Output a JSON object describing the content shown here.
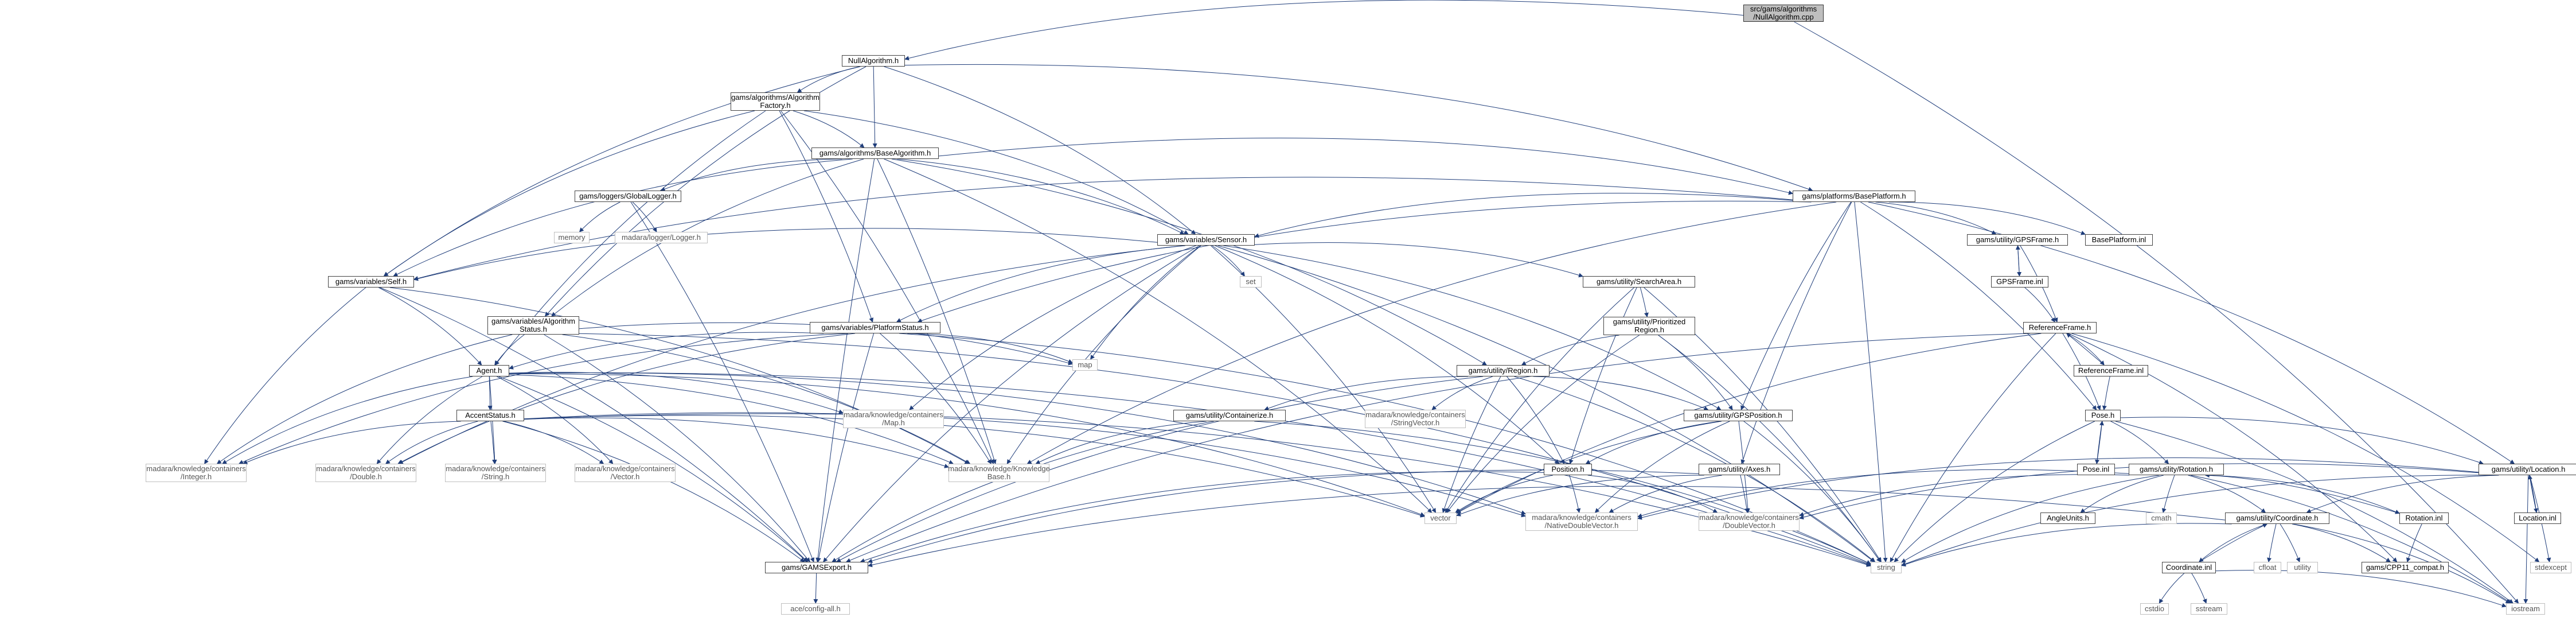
{
  "graph": {
    "nodes": [
      {
        "id": "root",
        "label": "src/gams/algorithms\n/NullAlgorithm.cpp",
        "kind": "root"
      },
      {
        "id": "nullalg",
        "label": "NullAlgorithm.h",
        "kind": "doc"
      },
      {
        "id": "algfactory",
        "label": "gams/algorithms/Algorithm\nFactory.h",
        "kind": "doc"
      },
      {
        "id": "basealg",
        "label": "gams/algorithms/BaseAlgorithm.h",
        "kind": "doc"
      },
      {
        "id": "globallogger",
        "label": "gams/loggers/GlobalLogger.h",
        "kind": "doc"
      },
      {
        "id": "memory",
        "label": "memory",
        "kind": "ext"
      },
      {
        "id": "madaralogger",
        "label": "madara/logger/Logger.h",
        "kind": "ext"
      },
      {
        "id": "baseplatform",
        "label": "gams/platforms/BasePlatform.h",
        "kind": "doc"
      },
      {
        "id": "sensor",
        "label": "gams/variables/Sensor.h",
        "kind": "doc"
      },
      {
        "id": "self",
        "label": "gams/variables/Self.h",
        "kind": "doc"
      },
      {
        "id": "set",
        "label": "set",
        "kind": "ext"
      },
      {
        "id": "algstatus",
        "label": "gams/variables/Algorithm\nStatus.h",
        "kind": "doc"
      },
      {
        "id": "platstatus",
        "label": "gams/variables/PlatformStatus.h",
        "kind": "doc"
      },
      {
        "id": "map",
        "label": "map",
        "kind": "ext"
      },
      {
        "id": "agent",
        "label": "Agent.h",
        "kind": "doc"
      },
      {
        "id": "accent",
        "label": "AccentStatus.h",
        "kind": "doc"
      },
      {
        "id": "mkint",
        "label": "madara/knowledge/containers\n/Integer.h",
        "kind": "ext"
      },
      {
        "id": "mkdouble",
        "label": "madara/knowledge/containers\n/Double.h",
        "kind": "ext"
      },
      {
        "id": "mkstring",
        "label": "madara/knowledge/containers\n/String.h",
        "kind": "ext"
      },
      {
        "id": "mkvector",
        "label": "madara/knowledge/containers\n/Vector.h",
        "kind": "ext"
      },
      {
        "id": "mkmap",
        "label": "madara/knowledge/containers\n/Map.h",
        "kind": "ext"
      },
      {
        "id": "mkbase",
        "label": "madara/knowledge/Knowledge\nBase.h",
        "kind": "ext"
      },
      {
        "id": "gamsexport",
        "label": "gams/GAMSExport.h",
        "kind": "doc"
      },
      {
        "id": "aceconfig",
        "label": "ace/config-all.h",
        "kind": "ext"
      },
      {
        "id": "searcharea",
        "label": "gams/utility/SearchArea.h",
        "kind": "doc"
      },
      {
        "id": "prioregion",
        "label": "gams/utility/Prioritized\nRegion.h",
        "kind": "doc"
      },
      {
        "id": "region",
        "label": "gams/utility/Region.h",
        "kind": "doc"
      },
      {
        "id": "mkstrvec",
        "label": "madara/knowledge/containers\n/StringVector.h",
        "kind": "ext"
      },
      {
        "id": "containerize",
        "label": "gams/utility/Containerize.h",
        "kind": "doc"
      },
      {
        "id": "gpsposition",
        "label": "gams/utility/GPSPosition.h",
        "kind": "doc"
      },
      {
        "id": "position",
        "label": "Position.h",
        "kind": "doc"
      },
      {
        "id": "axes",
        "label": "gams/utility/Axes.h",
        "kind": "doc"
      },
      {
        "id": "vector",
        "label": "vector",
        "kind": "ext"
      },
      {
        "id": "nativedv",
        "label": "madara/knowledge/containers\n/NativeDoubleVector.h",
        "kind": "ext"
      },
      {
        "id": "doublevec",
        "label": "madara/knowledge/containers\n/DoubleVector.h",
        "kind": "ext"
      },
      {
        "id": "string",
        "label": "string",
        "kind": "ext"
      },
      {
        "id": "gpsframeh",
        "label": "gams/utility/GPSFrame.h",
        "kind": "doc"
      },
      {
        "id": "gpsframeinl",
        "label": "GPSFrame.inl",
        "kind": "doc"
      },
      {
        "id": "baseplatinl",
        "label": "BasePlatform.inl",
        "kind": "doc"
      },
      {
        "id": "refframe",
        "label": "ReferenceFrame.h",
        "kind": "doc"
      },
      {
        "id": "refframeinl",
        "label": "ReferenceFrame.inl",
        "kind": "doc"
      },
      {
        "id": "pose",
        "label": "Pose.h",
        "kind": "doc"
      },
      {
        "id": "poseinl",
        "label": "Pose.inl",
        "kind": "doc"
      },
      {
        "id": "rotation",
        "label": "gams/utility/Rotation.h",
        "kind": "doc"
      },
      {
        "id": "angleunits",
        "label": "AngleUnits.h",
        "kind": "doc"
      },
      {
        "id": "cmath",
        "label": "cmath",
        "kind": "ext"
      },
      {
        "id": "coordinate",
        "label": "gams/utility/Coordinate.h",
        "kind": "doc"
      },
      {
        "id": "cfloat",
        "label": "cfloat",
        "kind": "ext"
      },
      {
        "id": "utility",
        "label": "utility",
        "kind": "ext"
      },
      {
        "id": "coordinl",
        "label": "Coordinate.inl",
        "kind": "doc"
      },
      {
        "id": "cstdio",
        "label": "cstdio",
        "kind": "ext"
      },
      {
        "id": "sstream",
        "label": "sstream",
        "kind": "ext"
      },
      {
        "id": "rotationinl",
        "label": "Rotation.inl",
        "kind": "doc"
      },
      {
        "id": "cpp11",
        "label": "gams/CPP11_compat.h",
        "kind": "doc"
      },
      {
        "id": "location",
        "label": "gams/utility/Location.h",
        "kind": "doc"
      },
      {
        "id": "locationinl",
        "label": "Location.inl",
        "kind": "doc"
      },
      {
        "id": "stdexcept",
        "label": "stdexcept",
        "kind": "ext"
      },
      {
        "id": "iostream",
        "label": "iostream",
        "kind": "ext"
      }
    ],
    "edges": [
      [
        "root",
        "nullalg"
      ],
      [
        "root",
        "iostream"
      ],
      [
        "nullalg",
        "algfactory"
      ],
      [
        "nullalg",
        "basealg"
      ],
      [
        "nullalg",
        "self"
      ],
      [
        "nullalg",
        "sensor"
      ],
      [
        "nullalg",
        "algstatus"
      ],
      [
        "nullalg",
        "baseplatform"
      ],
      [
        "algfactory",
        "basealg"
      ],
      [
        "algfactory",
        "self"
      ],
      [
        "algfactory",
        "sensor"
      ],
      [
        "algfactory",
        "platstatus"
      ],
      [
        "algfactory",
        "agent"
      ],
      [
        "algfactory",
        "mkbase"
      ],
      [
        "basealg",
        "globallogger"
      ],
      [
        "basealg",
        "baseplatform"
      ],
      [
        "basealg",
        "sensor"
      ],
      [
        "basealg",
        "self"
      ],
      [
        "basealg",
        "algstatus"
      ],
      [
        "basealg",
        "region"
      ],
      [
        "basealg",
        "vector"
      ],
      [
        "basealg",
        "mkbase"
      ],
      [
        "basealg",
        "gamsexport"
      ],
      [
        "globallogger",
        "memory"
      ],
      [
        "globallogger",
        "madaralogger"
      ],
      [
        "globallogger",
        "gamsexport"
      ],
      [
        "baseplatform",
        "sensor"
      ],
      [
        "baseplatform",
        "platstatus"
      ],
      [
        "baseplatform",
        "gpsframeh"
      ],
      [
        "baseplatform",
        "baseplatinl"
      ],
      [
        "baseplatform",
        "pose"
      ],
      [
        "baseplatform",
        "location"
      ],
      [
        "baseplatform",
        "gpsposition"
      ],
      [
        "baseplatform",
        "axes"
      ],
      [
        "baseplatform",
        "mkbase"
      ],
      [
        "baseplatform",
        "string"
      ],
      [
        "baseplatform",
        "self"
      ],
      [
        "sensor",
        "self"
      ],
      [
        "sensor",
        "map"
      ],
      [
        "sensor",
        "set"
      ],
      [
        "sensor",
        "searcharea"
      ],
      [
        "sensor",
        "platstatus"
      ],
      [
        "sensor",
        "gpsposition"
      ],
      [
        "sensor",
        "position"
      ],
      [
        "sensor",
        "mkmap"
      ],
      [
        "sensor",
        "mkbase"
      ],
      [
        "sensor",
        "mkdouble"
      ],
      [
        "sensor",
        "string"
      ],
      [
        "sensor",
        "vector"
      ],
      [
        "sensor",
        "gamsexport"
      ],
      [
        "self",
        "agent"
      ],
      [
        "self",
        "mkint"
      ],
      [
        "self",
        "mkbase"
      ],
      [
        "self",
        "gamsexport"
      ],
      [
        "algstatus",
        "agent"
      ],
      [
        "algstatus",
        "mkint"
      ],
      [
        "algstatus",
        "mkbase"
      ],
      [
        "algstatus",
        "gamsexport"
      ],
      [
        "algstatus",
        "map"
      ],
      [
        "algstatus",
        "string"
      ],
      [
        "platstatus",
        "agent"
      ],
      [
        "platstatus",
        "map"
      ],
      [
        "platstatus",
        "mkint"
      ],
      [
        "platstatus",
        "mkdouble"
      ],
      [
        "platstatus",
        "mkbase"
      ],
      [
        "platstatus",
        "gamsexport"
      ],
      [
        "platstatus",
        "string"
      ],
      [
        "agent",
        "accent"
      ],
      [
        "agent",
        "mkint"
      ],
      [
        "agent",
        "mkdouble"
      ],
      [
        "agent",
        "mkstring"
      ],
      [
        "agent",
        "mkvector"
      ],
      [
        "agent",
        "mkmap"
      ],
      [
        "agent",
        "mkbase"
      ],
      [
        "agent",
        "nativedv"
      ],
      [
        "agent",
        "gamsexport"
      ],
      [
        "agent",
        "string"
      ],
      [
        "agent",
        "vector"
      ],
      [
        "accent",
        "mkint"
      ],
      [
        "accent",
        "mkdouble"
      ],
      [
        "accent",
        "mkstring"
      ],
      [
        "accent",
        "mkvector"
      ],
      [
        "accent",
        "mkbase"
      ],
      [
        "accent",
        "nativedv"
      ],
      [
        "accent",
        "gamsexport"
      ],
      [
        "accent",
        "string"
      ],
      [
        "accent",
        "vector"
      ],
      [
        "gamsexport",
        "aceconfig"
      ],
      [
        "searcharea",
        "prioregion"
      ],
      [
        "searcharea",
        "position"
      ],
      [
        "searcharea",
        "string"
      ],
      [
        "searcharea",
        "vector"
      ],
      [
        "prioregion",
        "region"
      ],
      [
        "prioregion",
        "gpsposition"
      ],
      [
        "prioregion",
        "string"
      ],
      [
        "prioregion",
        "vector"
      ],
      [
        "region",
        "containerize"
      ],
      [
        "region",
        "gpsposition"
      ],
      [
        "region",
        "position"
      ],
      [
        "region",
        "mkstrvec"
      ],
      [
        "region",
        "vector"
      ],
      [
        "region",
        "string"
      ],
      [
        "region",
        "gamsexport"
      ],
      [
        "containerize",
        "mkbase"
      ],
      [
        "containerize",
        "gamsexport"
      ],
      [
        "containerize",
        "string"
      ],
      [
        "gpsposition",
        "position"
      ],
      [
        "gpsposition",
        "nativedv"
      ],
      [
        "gpsposition",
        "doublevec"
      ],
      [
        "gpsposition",
        "vector"
      ],
      [
        "gpsposition",
        "string"
      ],
      [
        "position",
        "vector"
      ],
      [
        "position",
        "gamsexport"
      ],
      [
        "position",
        "nativedv"
      ],
      [
        "position",
        "doublevec"
      ],
      [
        "axes",
        "vector"
      ],
      [
        "axes",
        "nativedv"
      ],
      [
        "axes",
        "doublevec"
      ],
      [
        "axes",
        "gamsexport"
      ],
      [
        "gpsframeh",
        "gpsframeinl"
      ],
      [
        "gpsframeh",
        "refframe"
      ],
      [
        "gpsframeinl",
        "gpsframeh"
      ],
      [
        "gpsframeinl",
        "refframe"
      ],
      [
        "refframe",
        "refframeinl"
      ],
      [
        "refframe",
        "pose"
      ],
      [
        "refframe",
        "vector"
      ],
      [
        "refframe",
        "cpp11"
      ],
      [
        "refframe",
        "stdexcept"
      ],
      [
        "refframe",
        "gamsexport"
      ],
      [
        "refframe",
        "string"
      ],
      [
        "refframeinl",
        "refframe"
      ],
      [
        "refframeinl",
        "pose"
      ],
      [
        "pose",
        "poseinl"
      ],
      [
        "pose",
        "rotation"
      ],
      [
        "pose",
        "location"
      ],
      [
        "pose",
        "string"
      ],
      [
        "pose",
        "iostream"
      ],
      [
        "poseinl",
        "pose"
      ],
      [
        "rotation",
        "angleunits"
      ],
      [
        "rotation",
        "cmath"
      ],
      [
        "rotation",
        "coordinate"
      ],
      [
        "rotation",
        "rotationinl"
      ],
      [
        "rotation",
        "nativedv"
      ],
      [
        "rotation",
        "doublevec"
      ],
      [
        "rotation",
        "string"
      ],
      [
        "rotation",
        "iostream"
      ],
      [
        "rotationinl",
        "rotation"
      ],
      [
        "rotationinl",
        "cpp11"
      ],
      [
        "coordinate",
        "cfloat"
      ],
      [
        "coordinate",
        "utility"
      ],
      [
        "coordinate",
        "coordinl"
      ],
      [
        "coordinate",
        "cpp11"
      ],
      [
        "coordinate",
        "gamsexport"
      ],
      [
        "coordinate",
        "string"
      ],
      [
        "coordinate",
        "iostream"
      ],
      [
        "coordinl",
        "coordinate"
      ],
      [
        "coordinl",
        "cstdio"
      ],
      [
        "coordinl",
        "sstream"
      ],
      [
        "coordinl",
        "iostream"
      ],
      [
        "location",
        "coordinate"
      ],
      [
        "location",
        "locationinl"
      ],
      [
        "location",
        "nativedv"
      ],
      [
        "location",
        "doublevec"
      ],
      [
        "location",
        "stdexcept"
      ],
      [
        "location",
        "string"
      ],
      [
        "location",
        "iostream"
      ],
      [
        "locationinl",
        "location"
      ]
    ]
  }
}
